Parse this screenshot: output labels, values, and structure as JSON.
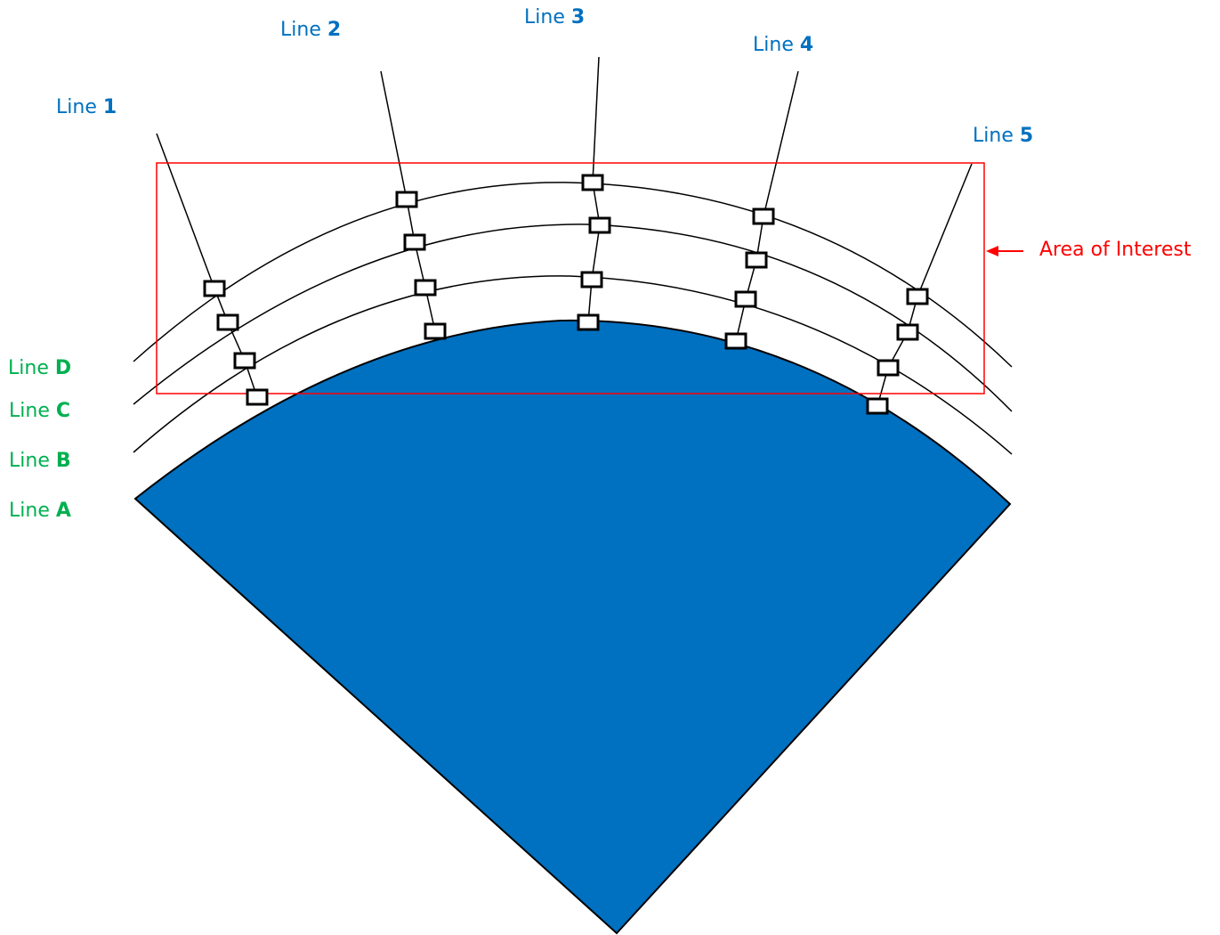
{
  "colors": {
    "sector_fill": "#0070C0",
    "radial_label": "#0070C0",
    "arc_label": "#00B050",
    "area_of_interest": "#FF0000",
    "line_stroke": "#000000",
    "marker_fill": "#FFFFFF"
  },
  "radial_lines": [
    {
      "prefix": "Line",
      "number": "1"
    },
    {
      "prefix": "Line",
      "number": "2"
    },
    {
      "prefix": "Line",
      "number": "3"
    },
    {
      "prefix": "Line",
      "number": "4"
    },
    {
      "prefix": "Line",
      "number": "5"
    }
  ],
  "arc_lines": [
    {
      "prefix": "Line",
      "letter": "D"
    },
    {
      "prefix": "Line",
      "letter": "C"
    },
    {
      "prefix": "Line",
      "letter": "B"
    },
    {
      "prefix": "Line",
      "letter": "A"
    }
  ],
  "area_of_interest": {
    "label": "Area of Interest"
  },
  "icons": {
    "arrow": "arrow-left-icon",
    "marker": "square-marker-icon"
  }
}
